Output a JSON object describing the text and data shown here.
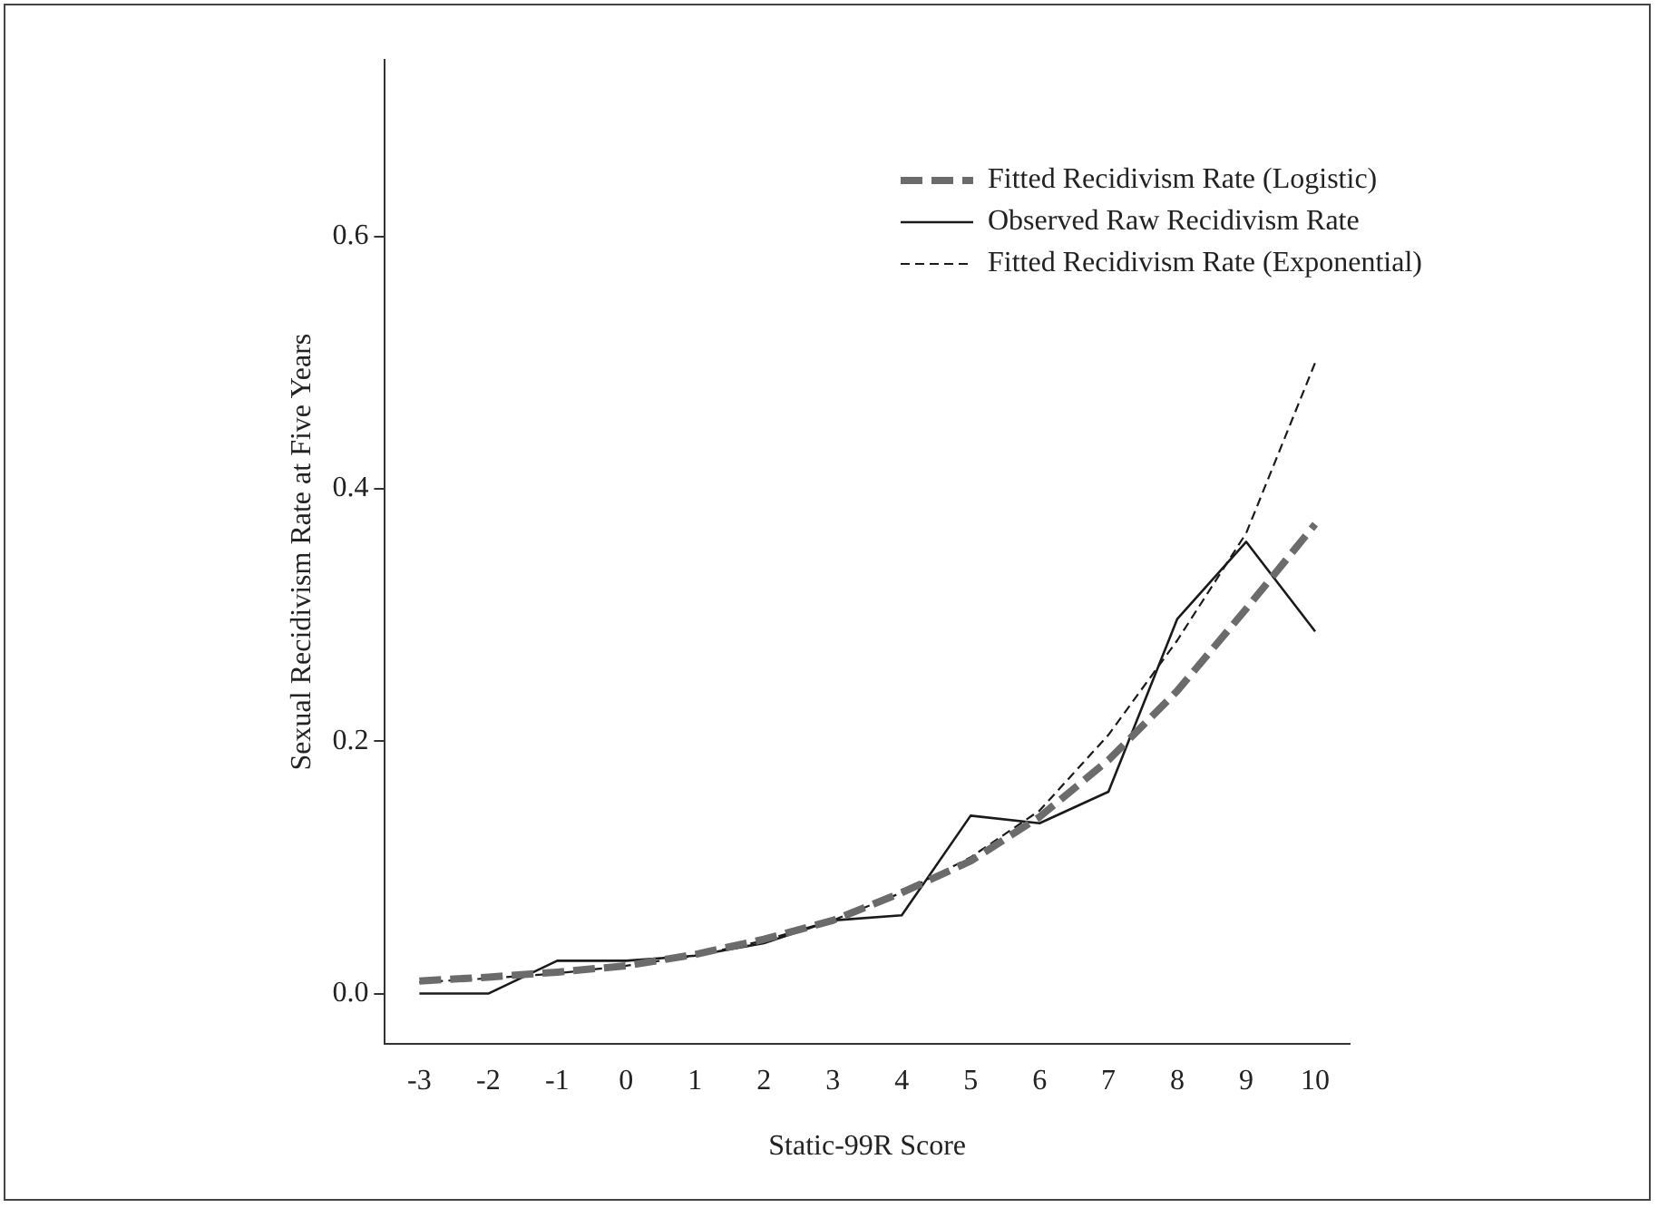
{
  "chart_data": {
    "type": "line",
    "xlabel": "Static-99R Score",
    "ylabel": "Sexual Recidivism Rate at Five Years",
    "categories": [
      "-3",
      "-2",
      "-1",
      "0",
      "1",
      "2",
      "3",
      "4",
      "5",
      "6",
      "7",
      "8",
      "9",
      "10"
    ],
    "ylim": [
      -0.04,
      0.74
    ],
    "yticks": [
      {
        "value": 0,
        "label": "0.0"
      },
      {
        "value": 0.2,
        "label": "0.2"
      },
      {
        "value": 0.4,
        "label": "0.4"
      },
      {
        "value": 0.6,
        "label": "0.6"
      }
    ],
    "grid": false,
    "legend": "top right",
    "marker": "none",
    "series": [
      {
        "name": "Fitted Recidivism Rate (Logistic)",
        "color": "#6b6b6b",
        "line_style": "dashed",
        "values": [
          0.01,
          0.013,
          0.017,
          0.022,
          0.031,
          0.043,
          0.058,
          0.08,
          0.105,
          0.14,
          0.185,
          0.24,
          0.305,
          0.372
        ]
      },
      {
        "name": "Observed Raw Recidivism Rate",
        "color": "#1a1a1a",
        "line_style": "solid",
        "values": [
          0.0,
          0.0,
          0.026,
          0.026,
          0.03,
          0.04,
          0.058,
          0.062,
          0.141,
          0.135,
          0.16,
          0.297,
          0.358,
          0.287
        ]
      },
      {
        "name": "Fitted Recidivism Rate (Exponential)",
        "color": "#1a1a1a",
        "line_style": "dotted",
        "values": [
          0.009,
          0.012,
          0.016,
          0.022,
          0.03,
          0.042,
          0.058,
          0.08,
          0.108,
          0.145,
          0.205,
          0.28,
          0.365,
          0.5
        ]
      }
    ]
  }
}
